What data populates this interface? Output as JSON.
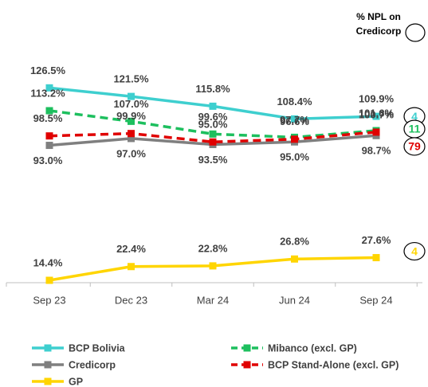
{
  "chart_data": {
    "type": "line",
    "categories": [
      "Sep 23",
      "Dec 23",
      "Mar 24",
      "Jun 24",
      "Sep 24"
    ],
    "ylim": [
      10,
      135
    ],
    "series": [
      {
        "name": "BCP Bolivia",
        "color": "#3ECFCF",
        "dashed": false,
        "label_side": "above",
        "values": [
          126.5,
          121.5,
          115.8,
          108.4,
          109.9
        ],
        "value_labels": [
          "126.5%",
          "121.5%",
          "115.8%",
          "108.4%",
          "109.9%"
        ]
      },
      {
        "name": "Mibanco (excl. GP)",
        "color": "#1DBF5E",
        "dashed": true,
        "label_side": "above",
        "values": [
          113.2,
          107.0,
          99.6,
          97.7,
          101.6
        ],
        "value_labels": [
          "113.2%",
          "107.0%",
          "99.6%",
          "97.7%",
          "101.6%"
        ]
      },
      {
        "name": "Credicorp",
        "color": "#7F7F7F",
        "dashed": false,
        "label_side": "below",
        "values": [
          93.0,
          97.0,
          93.5,
          95.0,
          98.7
        ],
        "value_labels": [
          "93.0%",
          "97.0%",
          "93.5%",
          "95.0%",
          "98.7%"
        ]
      },
      {
        "name": "BCP Stand-Alone (excl. GP)",
        "color": "#E00000",
        "dashed": true,
        "label_side": "above",
        "values": [
          98.5,
          99.9,
          95.0,
          96.6,
          100.7
        ],
        "value_labels": [
          "98.5%",
          "99.9%",
          "95.0%",
          "96.6%",
          "100.7%"
        ]
      },
      {
        "name": "GP",
        "color": "#FFD500",
        "dashed": false,
        "label_side": "above",
        "values": [
          14.4,
          22.4,
          22.8,
          26.8,
          27.6
        ],
        "value_labels": [
          "14.4%",
          "22.4%",
          "22.8%",
          "26.8%",
          "27.6%"
        ]
      }
    ],
    "npl_title": [
      "% NPL on",
      "Credicorp"
    ],
    "npl_values": [
      {
        "value": 4,
        "color": "#3ECFCF",
        "series": 0
      },
      {
        "value": 11,
        "color": "#1DBF5E",
        "series": 1
      },
      {
        "value": 79,
        "color": "#E00000",
        "series": 3
      },
      {
        "value": 4,
        "color": "#FFD500",
        "series": 4
      }
    ]
  }
}
